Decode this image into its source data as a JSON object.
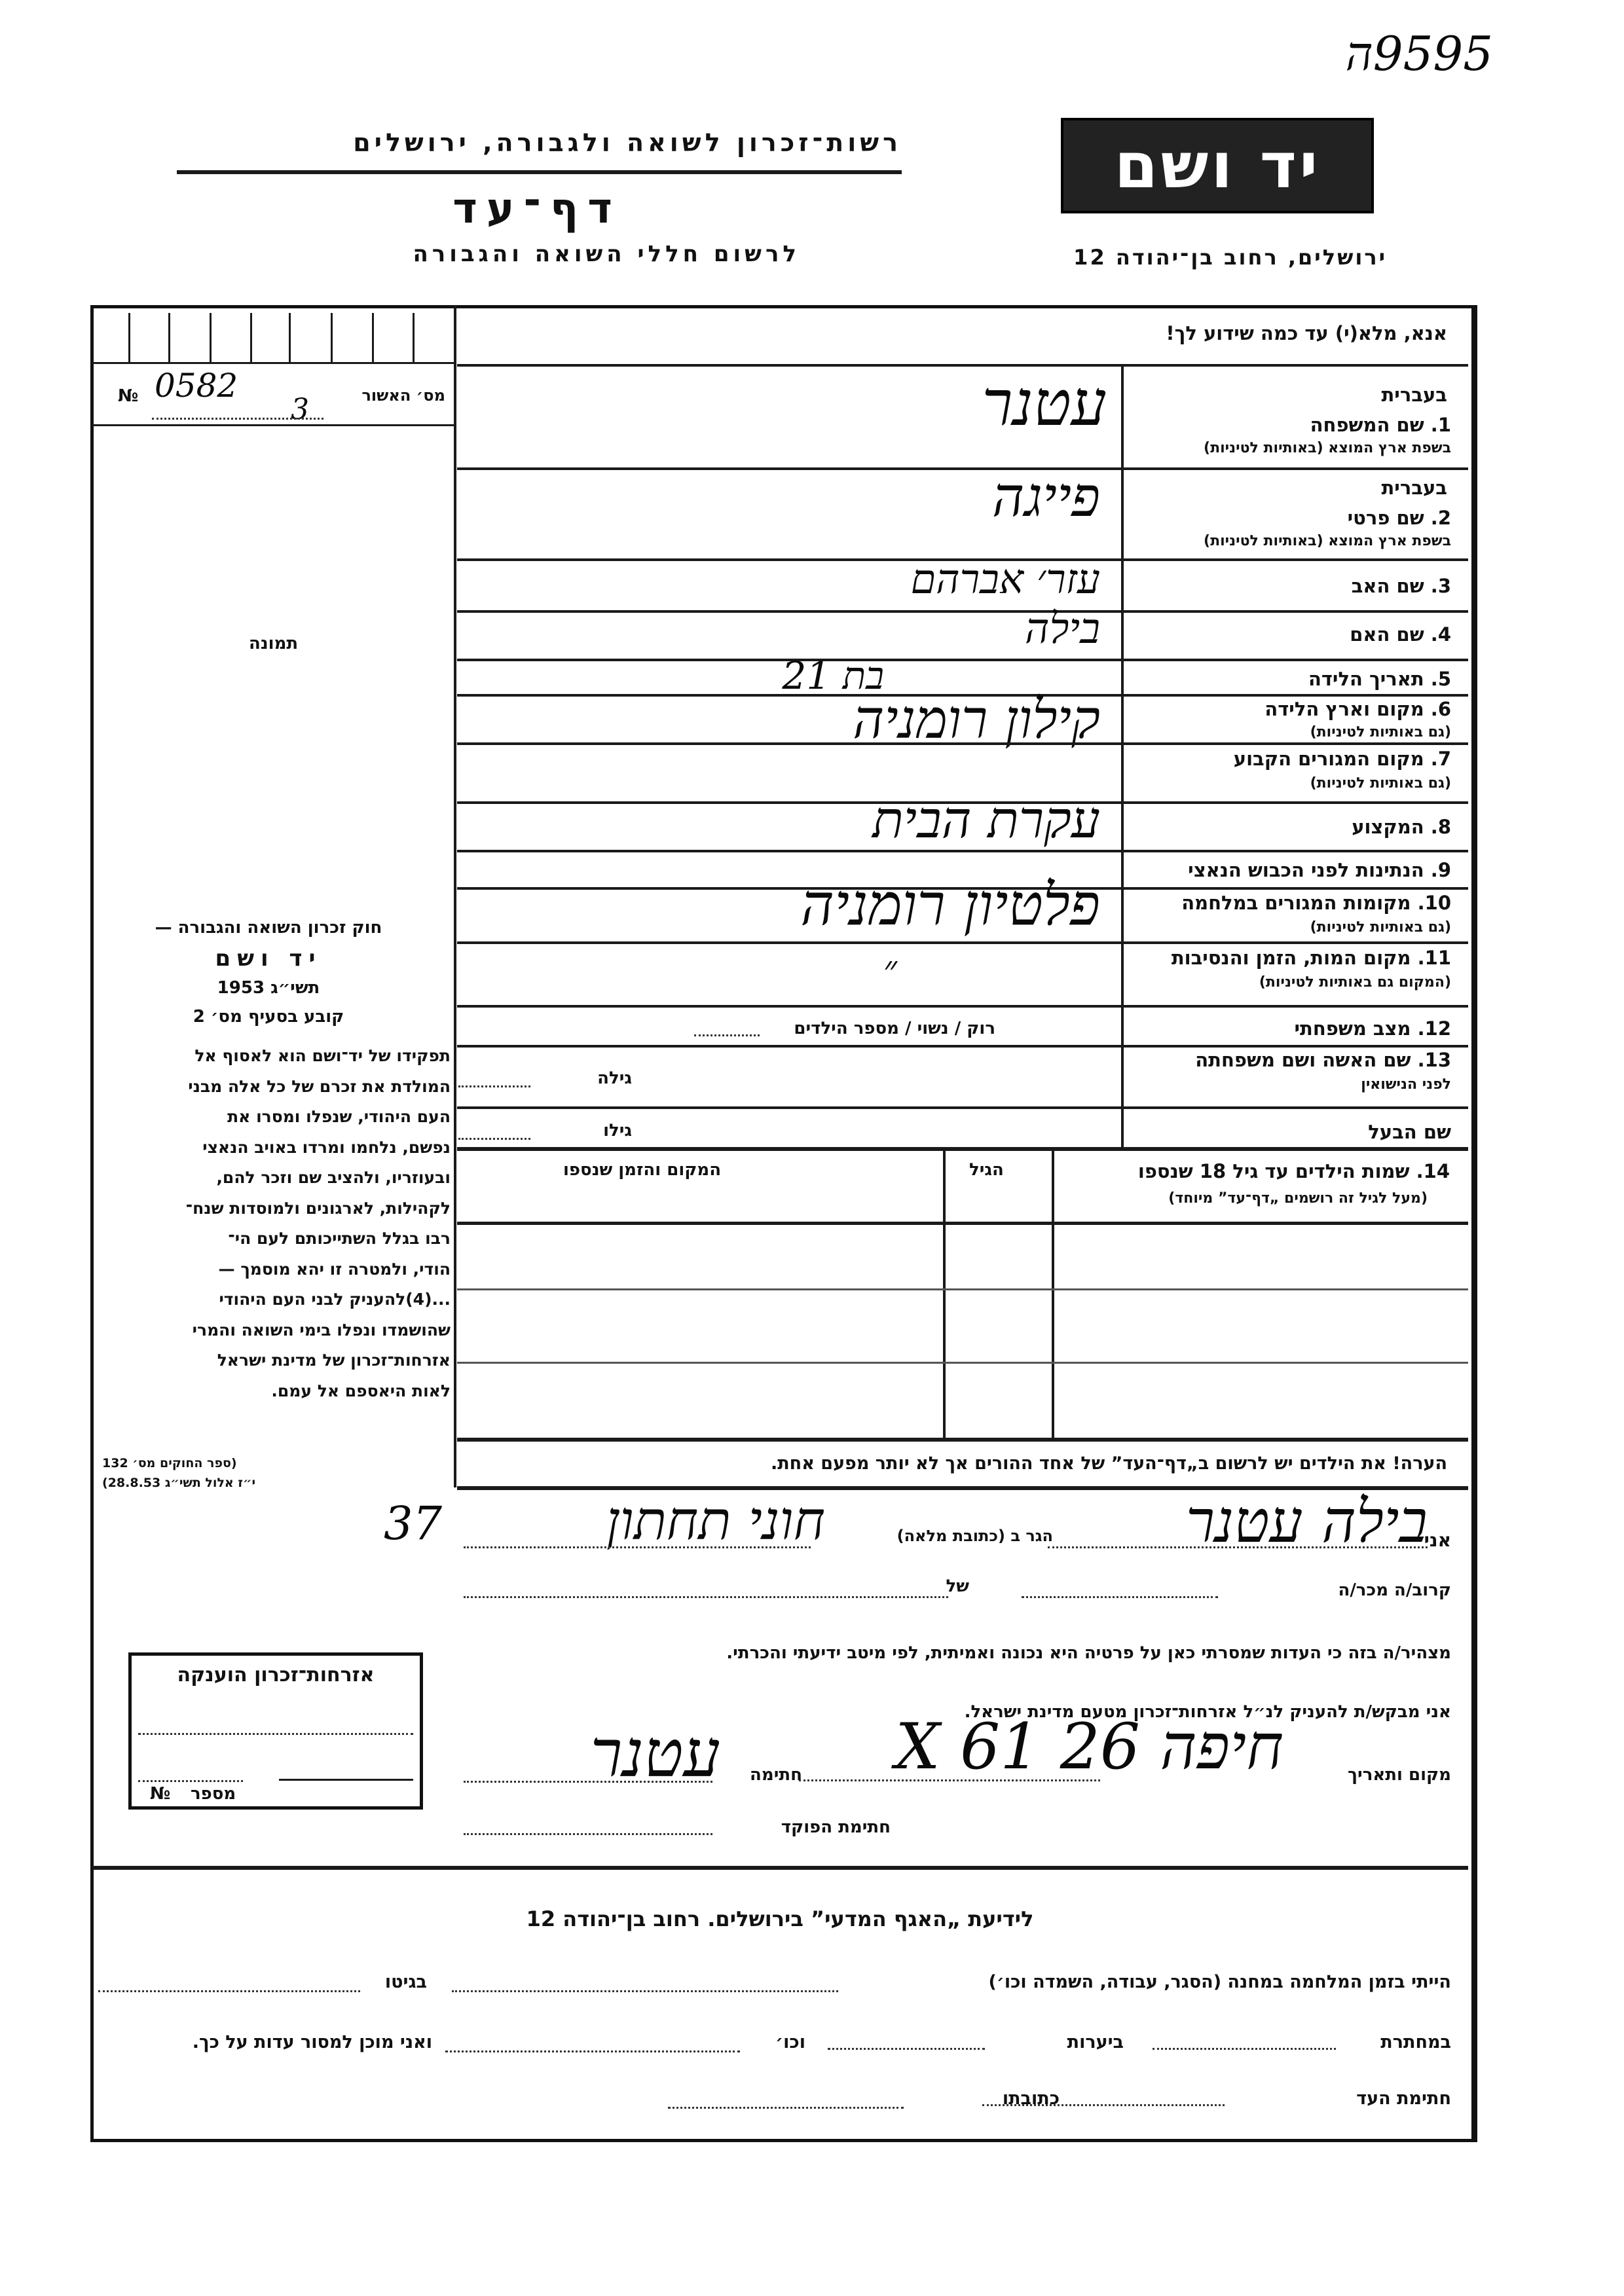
{
  "archive_number": "9595ה",
  "header": {
    "organization": "רשות־זכרון לשואה ולגבורה, ירושלים",
    "title": "דף־עד",
    "subtitle": "לרשום חללי השואה והגבורה",
    "logo_text": "יד ושם",
    "address": "ירושלים, רחוב בן־יהודה 12"
  },
  "form": {
    "instruction": "אנא, מלא(י) עד כמה שידוע לך!",
    "approval_label": "מס׳ האשור",
    "approval_no_sign": "№",
    "approval_number": "0582",
    "approval_suffix": "3",
    "photo_label": "תמונה",
    "hebrew_label": "בעברית",
    "fields": [
      {
        "label": "1. שם המשפחה",
        "sub": "בשפת ארץ המוצא (באותיות לטיניות)",
        "value": "עטנר"
      },
      {
        "label": "2. שם פרטי",
        "sub": "בשפת ארץ המוצא (באותיות לטיניות)",
        "value": "פייגה"
      },
      {
        "label": "3. שם האב",
        "sub": "",
        "value": "עזר׳ אברהם"
      },
      {
        "label": "4. שם האם",
        "sub": "",
        "value": "בילה"
      },
      {
        "label": "5. תאריך הלידה",
        "sub": "",
        "value": "בת 21"
      },
      {
        "label": "6. מקום וארץ הלידה",
        "sub": "(גם באותיות לטיניות)",
        "value": "קילון רומניה"
      },
      {
        "label": "7. מקום המגורים הקבוע",
        "sub": "(גם באותיות לטיניות)",
        "value": ""
      },
      {
        "label": "8. המקצוע",
        "sub": "",
        "value": "עקרת הבית"
      },
      {
        "label": "9. הנתינות לפני הכבוש הנאצי",
        "sub": "",
        "value": ""
      },
      {
        "label": "10. מקומות המגורים במלחמה",
        "sub": "(גם באותיות לטיניות)",
        "value": "פלטיון רומניה"
      },
      {
        "label": "11. מקום המות, הזמן והנסיבות",
        "sub": "(המקום גם באותיות לטיניות)",
        "value": "״"
      },
      {
        "label": "12. מצב משפחתי",
        "sub": "",
        "value": ""
      },
      {
        "label": "13. שם האשה ושם משפחתה",
        "sub": "לפני הנישואין",
        "value": ""
      },
      {
        "label": "שם הבעל",
        "sub": "",
        "value": ""
      }
    ],
    "marital_options": "רוק / נשוי / מספר הילדים",
    "wife_age_label": "גילה",
    "husband_age_label": "גילו",
    "children": {
      "label": "14. שמות הילדים עד גיל 18 שנספו",
      "sub": "(מעל לגיל זה רושמים „דף־עד” מיוחד)",
      "age_header": "הגיל",
      "place_header": "המקום והזמן שנספו"
    },
    "note": "הערה! את הילדים יש לרשום ב„דף־העד” של אחד ההורים אך לא יותר מפעם אחת."
  },
  "law": {
    "title": "חוק זכרון השואה והגבורה —",
    "name": "יד ושם",
    "year": "תשי״ג 1953",
    "clause": "קובע בסעיף מס׳ 2",
    "lines": [
      "תפקידו של יד־ושם הוא לאסוף אל",
      "המולדת את זכרם של כל אלה מבני",
      "העם היהודי, שנפלו ומסרו את",
      "נפשם, נלחמו ומרדו באויב הנאצי",
      "ובעוזריו, ולהציב שם וזכר להם,",
      "לקהילות, לארגונים ולמוסדות שנח־",
      "רבו בגלל השתייכותם לעם הי־",
      "הודי, ולמטרה זו יהא מוסמך —",
      "...(4)להעניק לבני העם היהודי",
      "שהושמדו ונפלו בימי השואה והמרי",
      "אזרחות־זכרון של מדינת ישראל",
      "לאות היאספם אל עמם."
    ],
    "source1": "(ספר החוקים מס׳ 132",
    "source2": "י״ז אלול תשי״ג 28.8.53)"
  },
  "stamp": {
    "title": "אזרחות־זכרון הוענקה",
    "number_label": "מספר",
    "no_sign": "№"
  },
  "declaration": {
    "i_label": "אני",
    "name": "בילה עטנר",
    "address_label": "הגר ב (כתובת מלאה)",
    "address": "חוני תחתון",
    "margin_note": "37",
    "relative_label": "קרוב/ה מכר/ה",
    "of_label": "של",
    "statement": "מצהיר/ה בזה כי העדות שמסרתי כאן על פרטיה היא נכונה ואמיתית, לפי מיטב ידיעתי והכרתי.",
    "request": "אני מבקש/ת להעניק לנ״ל אזרחות־זכרון מטעם מדינת ישראל.",
    "place_date_label": "מקום ותאריך",
    "place_date": "חיפה 26 X 61",
    "signature_label": "חתימה",
    "signature": "עטנר",
    "official_label": "חתימת הפוקד"
  },
  "bottom": {
    "title": "לידיעת „האגף המדעי” בירושלים. רחוב בן־יהודה 12",
    "line1_a": "הייתי בזמן המלחמה במחנה (הסגר, עבודה, השמדה וכו׳)",
    "line1_b": "בגיטו",
    "line2_a": "במחתרת",
    "line2_b": "ביערות",
    "line2_c": "וכו׳",
    "line2_d": "ואני מוכן למסור עדות על כך.",
    "line3_a": "חתימת העד",
    "line3_b": "כתובתו"
  }
}
